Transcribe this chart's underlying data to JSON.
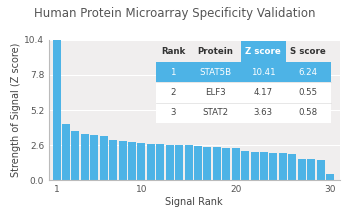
{
  "title": "Human Protein Microarray Specificity Validation",
  "xlabel": "Signal Rank",
  "ylabel": "Strength of Signal (Z score)",
  "bar_color": "#4db3e6",
  "bg_color": "#f0eeee",
  "ylim": [
    0,
    10.4
  ],
  "yticks": [
    0.0,
    2.6,
    5.2,
    7.8,
    10.4
  ],
  "xticks": [
    1,
    10,
    20,
    30
  ],
  "bar_values": [
    10.41,
    4.17,
    3.63,
    3.45,
    3.35,
    3.25,
    2.95,
    2.9,
    2.85,
    2.78,
    2.72,
    2.68,
    2.65,
    2.62,
    2.58,
    2.52,
    2.48,
    2.45,
    2.42,
    2.38,
    2.15,
    2.1,
    2.08,
    2.05,
    2.02,
    1.98,
    1.6,
    1.55,
    1.5,
    0.45
  ],
  "table_header": [
    "Rank",
    "Protein",
    "Z score",
    "S score"
  ],
  "table_rows": [
    [
      "1",
      "STAT5B",
      "10.41",
      "6.24"
    ],
    [
      "2",
      "ELF3",
      "4.17",
      "0.55"
    ],
    [
      "3",
      "STAT2",
      "3.63",
      "0.58"
    ]
  ],
  "table_blue_color": "#4db3e6",
  "table_text_white": "#ffffff",
  "table_text_dark": "#444444",
  "title_fontsize": 8.5,
  "axis_fontsize": 7,
  "tick_fontsize": 6.5,
  "table_fontsize": 6.2
}
